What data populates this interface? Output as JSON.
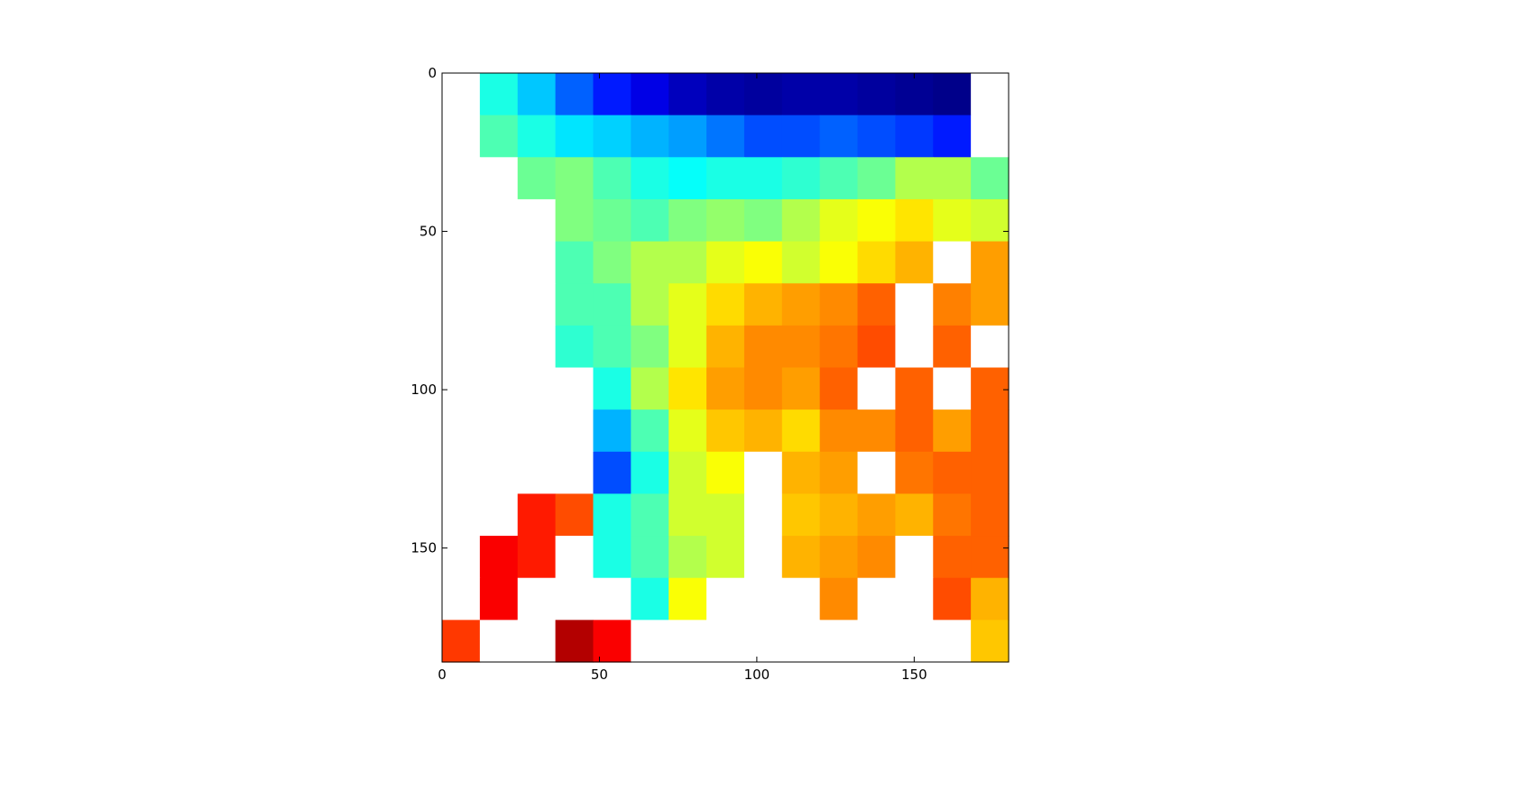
{
  "chart_data": {
    "type": "heatmap",
    "title": "",
    "xlabel": "",
    "ylabel": "",
    "xlim": [
      0,
      180
    ],
    "ylim": [
      186,
      0
    ],
    "xticks": [
      0,
      50,
      100,
      150
    ],
    "yticks": [
      0,
      50,
      100,
      150
    ],
    "grid": false,
    "colormap": "jet",
    "colorbar": false,
    "masked_region_color": "#ffffff",
    "values": [
      [
        null,
        0.4,
        0.32,
        0.22,
        0.15,
        0.1,
        0.06,
        0.04,
        0.03,
        0.04,
        0.04,
        0.03,
        0.02,
        0.01,
        null
      ],
      [
        null,
        0.45,
        0.4,
        0.35,
        0.33,
        0.3,
        0.28,
        0.24,
        0.2,
        0.2,
        0.22,
        0.2,
        0.18,
        0.15,
        null
      ],
      [
        null,
        null,
        0.48,
        0.5,
        0.45,
        0.4,
        0.38,
        0.4,
        0.4,
        0.42,
        0.45,
        0.48,
        0.55,
        0.55,
        0.48
      ],
      [
        null,
        null,
        null,
        0.5,
        0.48,
        0.45,
        0.5,
        0.52,
        0.5,
        0.55,
        0.6,
        0.62,
        0.65,
        0.6,
        0.58
      ],
      [
        null,
        null,
        null,
        0.45,
        0.5,
        0.55,
        0.55,
        0.6,
        0.62,
        0.58,
        0.62,
        0.66,
        0.7,
        null,
        0.72
      ],
      [
        null,
        null,
        null,
        0.45,
        0.45,
        0.55,
        0.6,
        0.66,
        0.7,
        0.72,
        0.74,
        0.78,
        null,
        0.75,
        0.72
      ],
      [
        null,
        null,
        null,
        0.42,
        0.45,
        0.5,
        0.6,
        0.7,
        0.74,
        0.74,
        0.76,
        0.8,
        null,
        0.78,
        null
      ],
      [
        null,
        null,
        null,
        null,
        0.4,
        0.55,
        0.65,
        0.72,
        0.74,
        0.72,
        0.78,
        null,
        0.78,
        null,
        0.78
      ],
      [
        null,
        null,
        null,
        null,
        0.3,
        0.45,
        0.6,
        0.68,
        0.7,
        0.66,
        0.74,
        0.74,
        0.78,
        0.72,
        0.78
      ],
      [
        null,
        null,
        null,
        null,
        0.2,
        0.4,
        0.58,
        0.62,
        null,
        0.7,
        0.72,
        null,
        0.76,
        0.78,
        0.78
      ],
      [
        null,
        null,
        0.85,
        0.8,
        0.4,
        0.45,
        0.58,
        0.58,
        null,
        0.68,
        0.7,
        0.72,
        0.7,
        0.76,
        0.78
      ],
      [
        null,
        0.88,
        0.85,
        null,
        0.4,
        0.45,
        0.55,
        0.58,
        null,
        0.7,
        0.72,
        0.74,
        null,
        0.78,
        0.78
      ],
      [
        null,
        0.88,
        null,
        null,
        null,
        0.4,
        0.62,
        null,
        null,
        null,
        0.74,
        null,
        null,
        0.8,
        0.7
      ],
      [
        0.82,
        null,
        null,
        0.95,
        0.88,
        null,
        null,
        null,
        null,
        null,
        null,
        null,
        null,
        null,
        0.68
      ]
    ]
  }
}
